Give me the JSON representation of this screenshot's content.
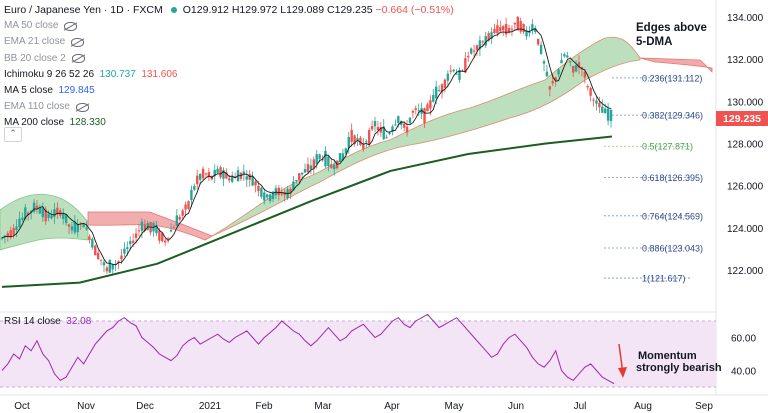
{
  "header": {
    "symbol": "Euro / Japanese Yen · 1D · FXCM",
    "open_label": "O",
    "open": "129.912",
    "high_label": "H",
    "high": "129.972",
    "low_label": "L",
    "low": "129.089",
    "close_label": "C",
    "close": "129.235",
    "change": "−0.664 (−0.51%)"
  },
  "indicators": [
    {
      "label": "MA 50 close",
      "value": "",
      "hidden": true
    },
    {
      "label": "EMA 21 close",
      "value": "",
      "hidden": true
    },
    {
      "label": "BB 20 close 2",
      "value": "",
      "hidden": true
    },
    {
      "label": "Ichimoku 9 26 52 26",
      "value": "130.737",
      "value2": "131.606",
      "hidden": false
    },
    {
      "label": "MA 5 close",
      "value": "129.845",
      "hidden": false
    },
    {
      "label": "EMA 110 close",
      "value": "",
      "hidden": true
    },
    {
      "label": "MA 200 close",
      "value": "128.330",
      "hidden": false
    }
  ],
  "colors": {
    "up": "#26a69a",
    "down": "#ef5350",
    "ma5": "#1a1a1a",
    "ma200": "#1b5e20",
    "cloud_bull": "#a5d6a7",
    "cloud_bear": "#ef9a9a",
    "rsi": "#9c27b0",
    "rsi_band": "#f3e5f5",
    "last_price_bg": "#ef5350",
    "fib_text": "#2a4b8d",
    "fib_05": "#43a047"
  },
  "annotations": {
    "edges_line1": "Edges above",
    "edges_line2": "5-DMA",
    "momentum_line1": "Momentum",
    "momentum_line2": "strongly bearish"
  },
  "last_price": "129.235",
  "rsi": {
    "label": "RSI 14 close",
    "value": "32.08"
  },
  "chart_data": {
    "type": "candlestick",
    "y_ticks": [
      "134.000",
      "132.000",
      "130.000",
      "128.000",
      "126.000",
      "124.000",
      "122.000"
    ],
    "x_ticks": [
      "Oct",
      "Nov",
      "Dec",
      "2021",
      "Feb",
      "Mar",
      "Apr",
      "May",
      "Jun",
      "Jul",
      "Aug",
      "Sep"
    ],
    "fib_levels": [
      {
        "ratio": "0.236",
        "price": 131.112,
        "label": "0.236(131.112)"
      },
      {
        "ratio": "0.382",
        "price": 129.346,
        "label": "0.382(129.346)"
      },
      {
        "ratio": "0.5",
        "price": 127.871,
        "label": "0.5(127.871)"
      },
      {
        "ratio": "0.618",
        "price": 126.395,
        "label": "0.618(126.395)"
      },
      {
        "ratio": "0.764",
        "price": 124.569,
        "label": "0.764(124.569)"
      },
      {
        "ratio": "0.886",
        "price": 123.043,
        "label": "0.886(123.043)"
      },
      {
        "ratio": "1",
        "price": 121.617,
        "label": "1(121.617)"
      }
    ],
    "price_path": [
      [
        0,
        123.5
      ],
      [
        6,
        123.9
      ],
      [
        12,
        124.6
      ],
      [
        18,
        125.0
      ],
      [
        24,
        124.5
      ],
      [
        30,
        124.8
      ],
      [
        36,
        123.9
      ],
      [
        42,
        124.2
      ],
      [
        48,
        123.0
      ],
      [
        54,
        122.0
      ],
      [
        60,
        122.4
      ],
      [
        66,
        123.2
      ],
      [
        72,
        124.1
      ],
      [
        78,
        124.0
      ],
      [
        84,
        123.4
      ],
      [
        90,
        124.3
      ],
      [
        96,
        125.1
      ],
      [
        100,
        126.2
      ],
      [
        104,
        126.6
      ],
      [
        108,
        126.4
      ],
      [
        112,
        126.7
      ],
      [
        118,
        126.3
      ],
      [
        124,
        126.6
      ],
      [
        130,
        126.2
      ],
      [
        136,
        125.4
      ],
      [
        142,
        125.7
      ],
      [
        148,
        125.6
      ],
      [
        152,
        126.4
      ],
      [
        158,
        126.8
      ],
      [
        164,
        127.4
      ],
      [
        170,
        126.9
      ],
      [
        176,
        127.4
      ],
      [
        180,
        128.4
      ],
      [
        186,
        127.9
      ],
      [
        192,
        128.9
      ],
      [
        198,
        128.3
      ],
      [
        204,
        129.2
      ],
      [
        208,
        128.6
      ],
      [
        212,
        129.6
      ],
      [
        218,
        129.4
      ],
      [
        222,
        130.2
      ],
      [
        226,
        130.6
      ],
      [
        232,
        131.6
      ],
      [
        236,
        131.1
      ],
      [
        240,
        132.2
      ],
      [
        246,
        132.6
      ],
      [
        250,
        133.0
      ],
      [
        256,
        133.5
      ],
      [
        262,
        133.4
      ],
      [
        266,
        133.8
      ],
      [
        270,
        133.2
      ],
      [
        274,
        133.6
      ],
      [
        278,
        132.2
      ],
      [
        282,
        130.6
      ],
      [
        286,
        131.3
      ],
      [
        290,
        132.3
      ],
      [
        294,
        131.5
      ],
      [
        298,
        131.8
      ],
      [
        302,
        130.6
      ],
      [
        306,
        129.9
      ],
      [
        310,
        129.5
      ],
      [
        314,
        129.2
      ]
    ],
    "ma200_path": [
      [
        0,
        121.2
      ],
      [
        40,
        121.4
      ],
      [
        80,
        122.3
      ],
      [
        120,
        123.8
      ],
      [
        160,
        125.3
      ],
      [
        200,
        126.7
      ],
      [
        240,
        127.5
      ],
      [
        280,
        128.0
      ],
      [
        314,
        128.33
      ]
    ],
    "rsi_ticks": [
      "60.00",
      "40.00"
    ],
    "rsi_values": [
      40,
      44,
      50,
      47,
      55,
      52,
      58,
      50,
      46,
      38,
      34,
      36,
      42,
      48,
      44,
      50,
      56,
      60,
      64,
      66,
      70,
      72,
      69,
      67,
      60,
      57,
      54,
      50,
      48,
      46,
      49,
      55,
      58,
      60,
      56,
      58,
      60,
      62,
      59,
      57,
      60,
      62,
      64,
      60,
      56,
      60,
      63,
      66,
      70,
      67,
      64,
      62,
      58,
      55,
      58,
      62,
      66,
      62,
      58,
      60,
      64,
      66,
      68,
      64,
      60,
      62,
      66,
      70,
      72,
      68,
      66,
      70,
      72,
      74,
      70,
      66,
      68,
      70,
      72,
      68,
      64,
      60,
      56,
      52,
      48,
      50,
      56,
      60,
      62,
      58,
      54,
      48,
      44,
      42,
      46,
      52,
      40,
      36,
      34,
      38,
      42,
      44,
      40,
      36,
      34,
      32
    ]
  }
}
